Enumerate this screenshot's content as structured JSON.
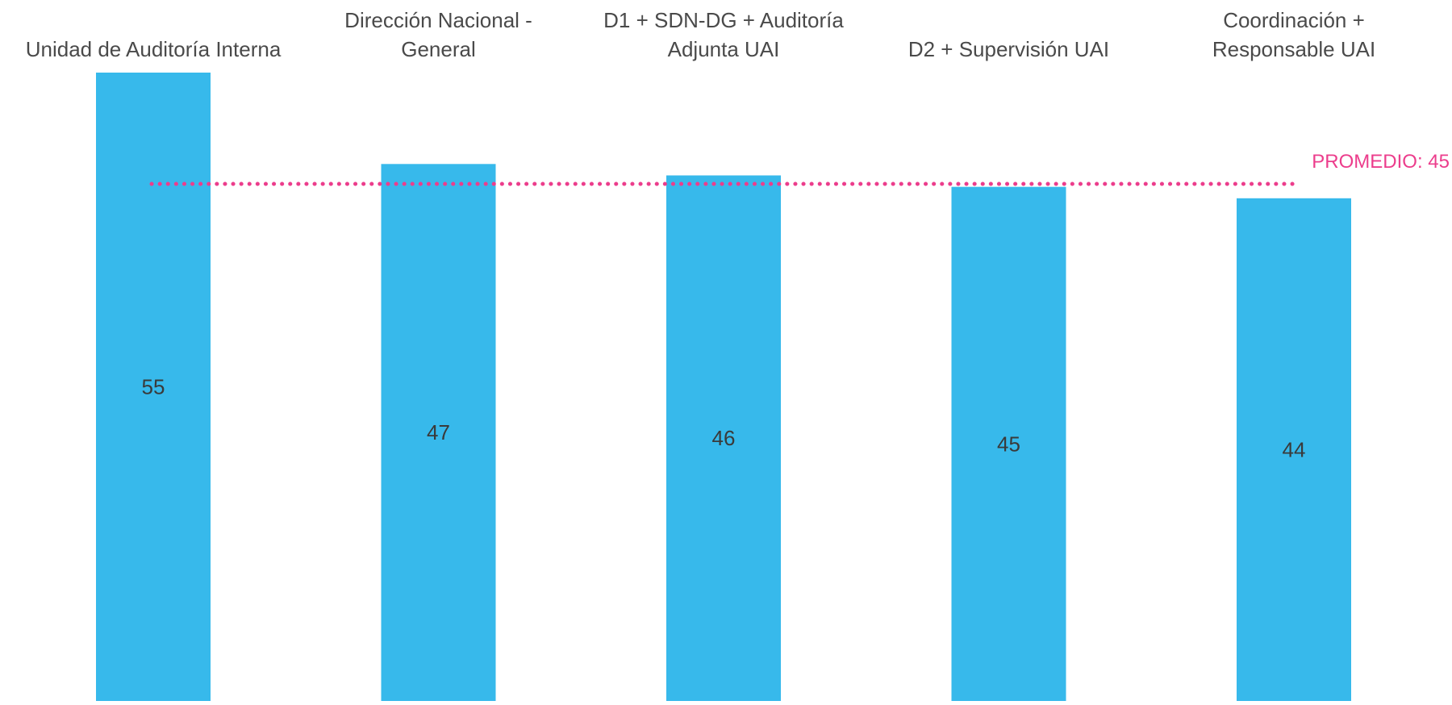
{
  "chart_data": {
    "type": "bar",
    "categories": [
      [
        "Unidad de Auditoría Interna"
      ],
      [
        "Dirección Nacional -",
        "General"
      ],
      [
        "D1 + SDN-DG + Auditoría",
        "Adjunta UAI"
      ],
      [
        "D2 + Supervisión UAI"
      ],
      [
        "Coordinación +",
        "Responsable UAI"
      ]
    ],
    "values": [
      55,
      47,
      46,
      45,
      44
    ],
    "value_labels": [
      "55",
      "47",
      "46",
      "45",
      "44"
    ],
    "average": {
      "value": 45,
      "label": "PROMEDIO: 45"
    },
    "ylim": [
      0,
      55
    ],
    "grid": false,
    "colors": {
      "bar": "#37b9eb",
      "average_line": "#ec3d8c",
      "text": "#4a4a4a"
    }
  }
}
